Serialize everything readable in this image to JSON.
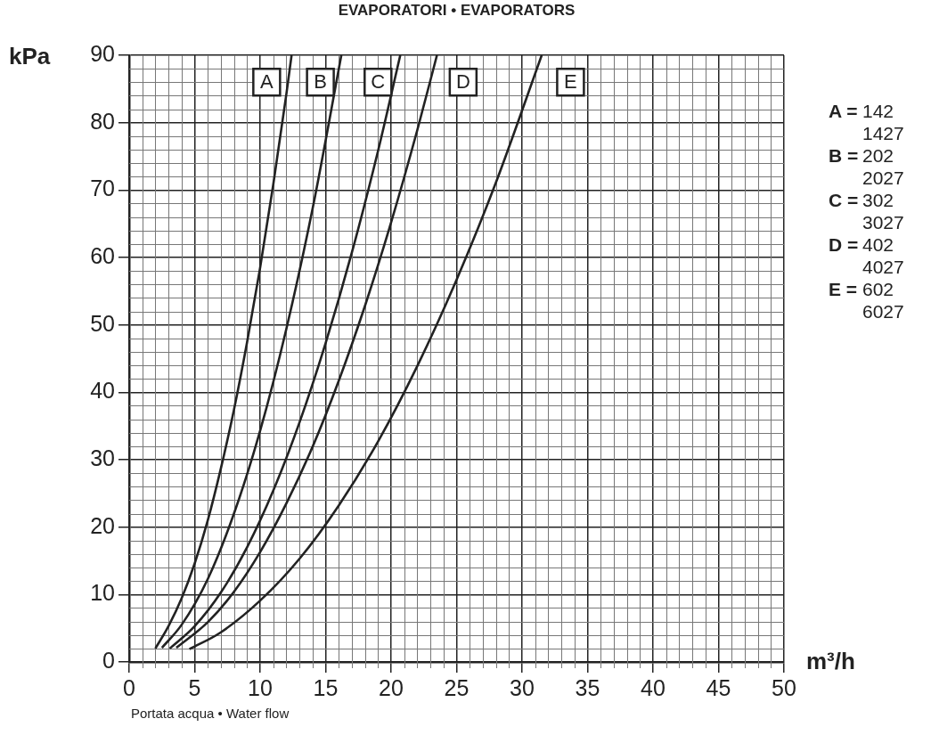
{
  "chart_data": {
    "type": "line",
    "title": "EVAPORATORI • EVAPORATORS",
    "xlabel": "m³/h",
    "ylabel": "kPa",
    "xlim": [
      0,
      50
    ],
    "xticks": [
      0,
      5,
      10,
      15,
      20,
      25,
      30,
      35,
      40,
      45,
      50
    ],
    "ylim": [
      0,
      90
    ],
    "yticks": [
      0,
      10,
      20,
      30,
      40,
      50,
      60,
      70,
      80,
      90
    ],
    "grid": true,
    "legend": false,
    "marker": "none",
    "line_style": "solid",
    "series": [
      {
        "color": "#222222",
        "x": [
          2,
          3,
          4,
          5,
          6,
          7,
          8,
          9,
          10,
          11,
          12,
          12.4
        ],
        "values": [
          2,
          5.3,
          9.4,
          14.6,
          21,
          28.7,
          37.4,
          47.4,
          58.5,
          70.8,
          84.2,
          90
        ]
      },
      {
        "color": "#222222",
        "x": [
          2.5,
          4,
          6,
          8,
          10,
          12,
          14,
          16.2
        ],
        "values": [
          2.1,
          5.5,
          12.3,
          22,
          34.3,
          49.4,
          67.2,
          90
        ]
      },
      {
        "color": "#222222",
        "x": [
          3.1,
          5,
          7,
          9,
          11,
          13,
          15,
          17,
          19,
          20.7
        ],
        "values": [
          2,
          5.3,
          10.3,
          17,
          25.4,
          35.5,
          47.3,
          60.7,
          75.8,
          90
        ]
      },
      {
        "color": "#222222",
        "x": [
          3.6,
          6,
          8,
          10,
          12,
          14,
          16,
          18,
          20,
          22,
          23.5
        ],
        "values": [
          2.1,
          5.9,
          10.4,
          16.3,
          23.5,
          31.9,
          41.7,
          52.8,
          65.2,
          78.9,
          90
        ]
      },
      {
        "color": "#222222",
        "x": [
          4.6,
          7,
          10,
          13,
          16,
          19,
          22,
          25,
          28,
          31.5
        ],
        "values": [
          1.9,
          4.4,
          9.1,
          15.3,
          23.2,
          32.7,
          43.9,
          56.7,
          71.1,
          90
        ]
      }
    ],
    "annotations": [
      {
        "text": "A",
        "x": 10.5,
        "y": 86
      },
      {
        "text": "B",
        "x": 14.6,
        "y": 86
      },
      {
        "text": "C",
        "x": 19,
        "y": 86
      },
      {
        "text": "D",
        "x": 25.5,
        "y": 86
      },
      {
        "text": "E",
        "x": 33.7,
        "y": 86
      },
      "A = 142\n1427",
      "B = 202\n2027",
      "C = 302\n3027",
      "D = 402\n4027",
      "E = 602\n6027",
      "Portata acqua • Water flow"
    ]
  }
}
